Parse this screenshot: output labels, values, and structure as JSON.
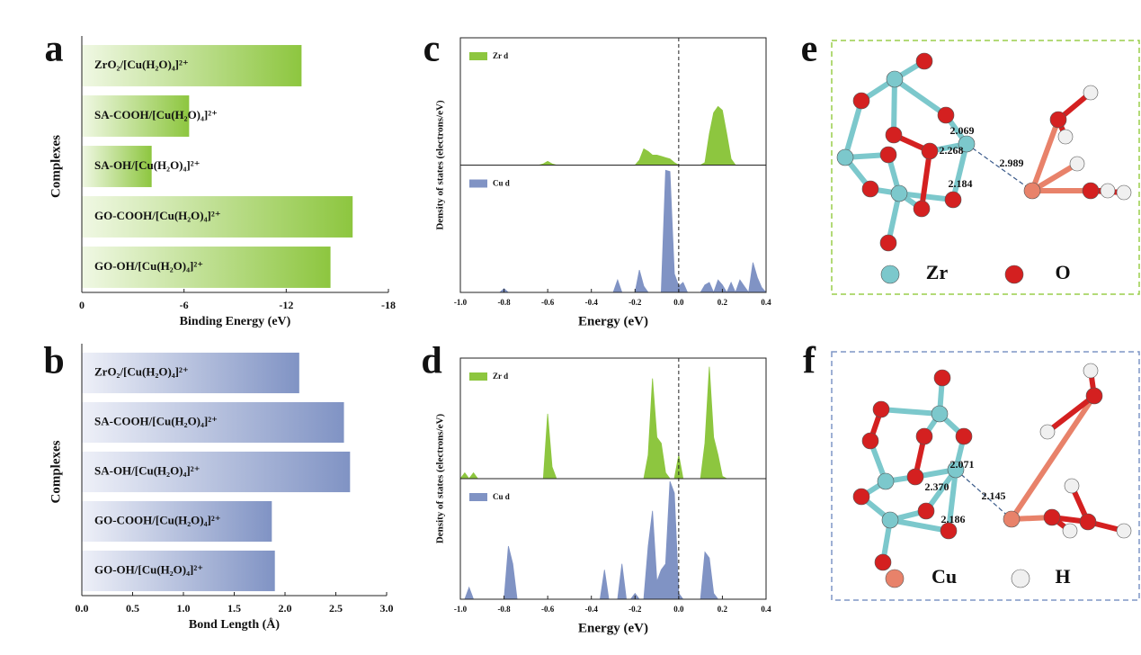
{
  "chart_data": [
    {
      "type": "barh",
      "panel_label": "a",
      "xlabel": "Binding Energy (eV)",
      "ylabel": "Complexes",
      "categories": [
        "ZrO₂/[Cu(H₂O)₄]²⁺",
        "SA-COOH/[Cu(H₂O)₄]²⁺",
        "SA-OH/[Cu(H₂O)₄]²⁺",
        "GO-COOH/[Cu(H₂O)₄]²⁺",
        "GO-OH/[Cu(H₂O)₄]²⁺"
      ],
      "values": [
        -12.9,
        -6.3,
        -4.1,
        -15.9,
        -14.6
      ],
      "color": "#8dc63f",
      "xlim": [
        0,
        -18
      ],
      "xticks": [
        0,
        -6,
        -12,
        -18
      ]
    },
    {
      "type": "barh",
      "panel_label": "b",
      "xlabel": "Bond Length (Å)",
      "ylabel": "Complexes",
      "categories": [
        "ZrO₂/[Cu(H₂O)₄]²⁺",
        "SA-COOH/[Cu(H₂O)₄]²⁺",
        "SA-OH/[Cu(H₂O)₄]²⁺",
        "GO-COOH/[Cu(H₂O)₄]²⁺",
        "GO-OH/[Cu(H₂O)₄]²⁺"
      ],
      "values": [
        2.14,
        2.58,
        2.64,
        1.87,
        1.9
      ],
      "color": "#8093c4",
      "xlim": [
        0,
        3
      ],
      "xticks": [
        {
          "value": 0,
          "label": "0.0"
        },
        0.5,
        {
          "value": 1,
          "label": "1.0"
        },
        1.5,
        {
          "value": 2,
          "label": "2.0"
        },
        2.5,
        {
          "value": 3,
          "label": "3.0"
        }
      ]
    },
    {
      "type": "area",
      "panel_label": "c",
      "xlabel": "Energy (eV)",
      "ylabel": "Density of states (electrons/eV)",
      "x": [
        -1.0,
        -0.98,
        -0.96,
        -0.94,
        -0.92,
        -0.9,
        -0.88,
        -0.86,
        -0.84,
        -0.82,
        -0.8,
        -0.78,
        -0.76,
        -0.74,
        -0.72,
        -0.7,
        -0.68,
        -0.66,
        -0.64,
        -0.62,
        -0.6,
        -0.58,
        -0.56,
        -0.54,
        -0.52,
        -0.5,
        -0.48,
        -0.46,
        -0.44,
        -0.42,
        -0.4,
        -0.38,
        -0.36,
        -0.34,
        -0.32,
        -0.3,
        -0.28,
        -0.26,
        -0.24,
        -0.22,
        -0.2,
        -0.18,
        -0.16,
        -0.14,
        -0.12,
        -0.1,
        -0.08,
        -0.06,
        -0.04,
        -0.02,
        0.0,
        0.02,
        0.04,
        0.06,
        0.08,
        0.1,
        0.12,
        0.14,
        0.16,
        0.18,
        0.2,
        0.22,
        0.24,
        0.26,
        0.28,
        0.3,
        0.32,
        0.34,
        0.36,
        0.38,
        0.4
      ],
      "xlim": [
        -1,
        0.4
      ],
      "ylim": [
        0,
        1
      ],
      "vline": 0,
      "xticks": [
        {
          "value": -1,
          "label": "-1.0"
        },
        -0.8,
        -0.6,
        -0.4,
        -0.2,
        {
          "value": 0,
          "label": "0.0"
        },
        0.2,
        0.4
      ],
      "series": [
        {
          "name": "Zr d",
          "color": "#8dc63f",
          "values": [
            0,
            0,
            0,
            0,
            0,
            0,
            0,
            0,
            0,
            0,
            0,
            0,
            0,
            0,
            0,
            0,
            0,
            0,
            0,
            0.01,
            0.03,
            0.01,
            0,
            0,
            0,
            0,
            0,
            0,
            0,
            0,
            0,
            0,
            0,
            0,
            0,
            0,
            0,
            0,
            0,
            0,
            0,
            0.04,
            0.13,
            0.11,
            0.08,
            0.08,
            0.07,
            0.06,
            0.05,
            0.02,
            0,
            0,
            0,
            0,
            0,
            0,
            0.02,
            0.25,
            0.42,
            0.47,
            0.44,
            0.25,
            0.05,
            0,
            0,
            0,
            0,
            0,
            0,
            0,
            0
          ]
        },
        {
          "name": "Cu d",
          "color": "#8093c4",
          "values": [
            0,
            0,
            0,
            0,
            0,
            0,
            0,
            0,
            0,
            0,
            0.03,
            0,
            0,
            0,
            0,
            0,
            0,
            0,
            0,
            0,
            0,
            0,
            0,
            0,
            0,
            0,
            0,
            0,
            0,
            0,
            0,
            0,
            0,
            0,
            0,
            0,
            0.1,
            0,
            0,
            0,
            0,
            0.18,
            0.05,
            0,
            0,
            0,
            0,
            0.98,
            0.97,
            0.15,
            0.05,
            0.08,
            0,
            0,
            0,
            0,
            0.06,
            0.08,
            0,
            0.1,
            0.06,
            0,
            0.08,
            0,
            0.1,
            0.05,
            0,
            0.24,
            0.12,
            0.04,
            0
          ]
        }
      ]
    },
    {
      "type": "area",
      "panel_label": "d",
      "xlabel": "Energy (eV)",
      "ylabel": "Density of states (electrons/eV)",
      "x": [
        -1.0,
        -0.98,
        -0.96,
        -0.94,
        -0.92,
        -0.9,
        -0.88,
        -0.86,
        -0.84,
        -0.82,
        -0.8,
        -0.78,
        -0.76,
        -0.74,
        -0.72,
        -0.7,
        -0.68,
        -0.66,
        -0.64,
        -0.62,
        -0.6,
        -0.58,
        -0.56,
        -0.54,
        -0.52,
        -0.5,
        -0.48,
        -0.46,
        -0.44,
        -0.42,
        -0.4,
        -0.38,
        -0.36,
        -0.34,
        -0.32,
        -0.3,
        -0.28,
        -0.26,
        -0.24,
        -0.22,
        -0.2,
        -0.18,
        -0.16,
        -0.14,
        -0.12,
        -0.1,
        -0.08,
        -0.06,
        -0.04,
        -0.02,
        0.0,
        0.02,
        0.04,
        0.06,
        0.08,
        0.1,
        0.12,
        0.14,
        0.16,
        0.18,
        0.2,
        0.22,
        0.24,
        0.26,
        0.28,
        0.3,
        0.32,
        0.34,
        0.36,
        0.38,
        0.4
      ],
      "xlim": [
        -1,
        0.4
      ],
      "ylim": [
        0,
        1
      ],
      "vline": 0,
      "xticks": [
        {
          "value": -1,
          "label": "-1.0"
        },
        -0.8,
        -0.6,
        -0.4,
        -0.2,
        {
          "value": 0,
          "label": "0.0"
        },
        0.2,
        0.4
      ],
      "series": [
        {
          "name": "Zr d",
          "color": "#8dc63f",
          "values": [
            0,
            0.05,
            0,
            0.05,
            0,
            0,
            0,
            0,
            0,
            0,
            0,
            0,
            0,
            0,
            0,
            0,
            0,
            0,
            0,
            0,
            0.55,
            0.1,
            0,
            0,
            0,
            0,
            0,
            0,
            0,
            0,
            0,
            0,
            0,
            0,
            0,
            0,
            0,
            0,
            0,
            0,
            0,
            0,
            0,
            0.2,
            0.85,
            0.35,
            0.3,
            0.05,
            0,
            0,
            0.2,
            0,
            0,
            0,
            0,
            0,
            0.3,
            0.95,
            0.35,
            0.2,
            0.02,
            0,
            0,
            0,
            0,
            0,
            0,
            0,
            0,
            0,
            0
          ]
        },
        {
          "name": "Cu d",
          "color": "#8093c4",
          "values": [
            0,
            0,
            0.1,
            0,
            0,
            0,
            0,
            0,
            0,
            0,
            0,
            0.45,
            0.3,
            0,
            0,
            0,
            0,
            0,
            0,
            0,
            0,
            0,
            0,
            0,
            0,
            0,
            0,
            0,
            0,
            0,
            0,
            0,
            0,
            0.25,
            0,
            0,
            0,
            0.3,
            0,
            0,
            0.05,
            0,
            0,
            0.45,
            0.75,
            0.15,
            0.25,
            0.3,
            1.0,
            0.9,
            0.05,
            0,
            0,
            0,
            0,
            0,
            0.4,
            0.35,
            0.05,
            0,
            0,
            0,
            0,
            0,
            0,
            0,
            0,
            0,
            0,
            0,
            0
          ]
        }
      ]
    }
  ],
  "structures": [
    {
      "panel_label": "e",
      "legend": [
        "Zr",
        "O"
      ],
      "distances": [
        "2.069",
        "2.268",
        "2.989",
        "2.184"
      ]
    },
    {
      "panel_label": "f",
      "legend": [
        "Cu",
        "H"
      ],
      "distances": [
        "2.071",
        "2.370",
        "2.145",
        "2.186"
      ]
    }
  ]
}
